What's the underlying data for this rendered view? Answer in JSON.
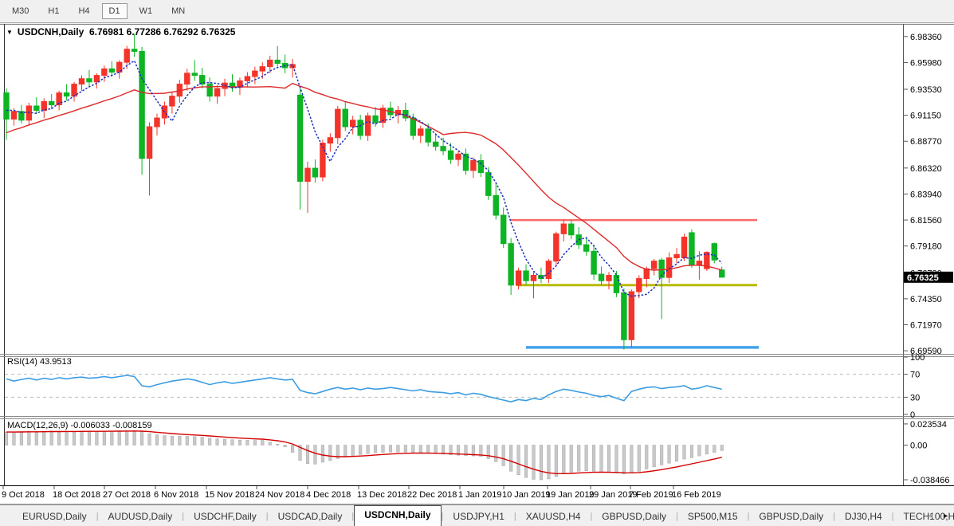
{
  "toolbar": {
    "timeframes": [
      "M30",
      "H1",
      "H4",
      "D1",
      "W1",
      "MN"
    ],
    "active_timeframe": "D1"
  },
  "chart": {
    "symbol": "USDCNH,Daily",
    "ohlc_text": "6.76981 6.77286 6.76292 6.76325",
    "open": "6.76981",
    "high": "6.77286",
    "low": "6.76292",
    "close": "6.76325",
    "current_price": "6.76325",
    "price_scale_labels": [
      "6.98360",
      "6.95980",
      "6.93530",
      "6.91150",
      "6.88770",
      "6.86320",
      "6.83940",
      "6.81560",
      "6.79180",
      "6.76730",
      "6.74350",
      "6.71970",
      "6.69590"
    ]
  },
  "rsi": {
    "label": "RSI(14) 43.9513",
    "scale_labels": [
      "100",
      "70",
      "30",
      "0"
    ],
    "dashed_levels": [
      70,
      30
    ]
  },
  "macd": {
    "label": "MACD(12,26,9) -0.006033 -0.008159",
    "scale_labels": [
      "0.023534",
      "0.00",
      "-0.038466"
    ]
  },
  "date_axis": [
    "9 Oct 2018",
    "18 Oct 2018",
    "27 Oct 2018",
    "6 Nov 2018",
    "15 Nov 2018",
    "24 Nov 2018",
    "4 Dec 2018",
    "13 Dec 2018",
    "22 Dec 2018",
    "1 Jan 2019",
    "10 Jan 2019",
    "19 Jan 2019",
    "29 Jan 2019",
    "7 Feb 2019",
    "16 Feb 2019"
  ],
  "tabs": {
    "items": [
      "EURUSD,Daily",
      "AUDUSD,Daily",
      "USDCHF,Daily",
      "USDCAD,Daily",
      "USDCNH,Daily",
      "USDJPY,H1",
      "XAUUSD,H4",
      "GBPUSD,Daily",
      "SP500,M15",
      "GBPUSD,Daily",
      "DJ30,H4",
      "TECH100,H1"
    ],
    "active_index": 4,
    "scroll_left": "◄",
    "scroll_right": "►"
  },
  "colors": {
    "bull_red": "#f4342a",
    "bear_green": "#0db424",
    "ma_fast_blue": "#1c2fbd",
    "ma_slow_red": "#dd2a2a",
    "level_red": "#fa6a6a",
    "level_olive": "#b7ba00",
    "level_blue": "#42a2ea",
    "rsi_blue": "#3d9de2",
    "macd_bar": "#c9c9c9",
    "macd_bar_edge": "#a6a6a6",
    "macd_signal": "#d40000",
    "price_tag_bg": "#000000",
    "price_tag_text": "#ffffff"
  },
  "chart_data": {
    "type": "candlestick",
    "title": "USDCNH,Daily",
    "levels": {
      "resistance_red": 6.8156,
      "support_olive": 6.756,
      "support_blue": 6.699
    },
    "price_axis_range": [
      6.6923,
      6.9944
    ],
    "rsi_axis_range": [
      0,
      100
    ],
    "macd_axis_range": [
      -0.0429,
      0.0279
    ],
    "ma_seed_closes": [
      6.858,
      6.862,
      6.866,
      6.87,
      6.874,
      6.878,
      6.882,
      6.886,
      6.89,
      6.894,
      6.897,
      6.9,
      6.903,
      6.906,
      6.909,
      6.912,
      6.915,
      6.917,
      6.919,
      6.921
    ],
    "candles_ohlc": [
      [
        6.932,
        6.936,
        6.889,
        6.908
      ],
      [
        6.908,
        6.918,
        6.902,
        6.915
      ],
      [
        6.915,
        6.921,
        6.904,
        6.907
      ],
      [
        6.907,
        6.923,
        6.902,
        6.92
      ],
      [
        6.92,
        6.928,
        6.913,
        6.916
      ],
      [
        6.916,
        6.927,
        6.909,
        6.924
      ],
      [
        6.924,
        6.931,
        6.917,
        6.921
      ],
      [
        6.921,
        6.934,
        6.916,
        6.932
      ],
      [
        6.932,
        6.94,
        6.925,
        6.929
      ],
      [
        6.929,
        6.942,
        6.924,
        6.94
      ],
      [
        6.94,
        6.948,
        6.934,
        6.945
      ],
      [
        6.945,
        6.953,
        6.938,
        6.942
      ],
      [
        6.942,
        6.95,
        6.936,
        6.948
      ],
      [
        6.948,
        6.957,
        6.942,
        6.954
      ],
      [
        6.954,
        6.961,
        6.947,
        6.951
      ],
      [
        6.951,
        6.962,
        6.945,
        6.96
      ],
      [
        6.96,
        6.975,
        6.954,
        6.972
      ],
      [
        6.972,
        6.986,
        6.965,
        6.97
      ],
      [
        6.97,
        6.974,
        6.857,
        6.872
      ],
      [
        6.872,
        6.905,
        6.838,
        6.901
      ],
      [
        6.901,
        6.913,
        6.893,
        6.909
      ],
      [
        6.909,
        6.924,
        6.903,
        6.92
      ],
      [
        6.92,
        6.933,
        6.913,
        6.929
      ],
      [
        6.929,
        6.944,
        6.923,
        6.94
      ],
      [
        6.94,
        6.954,
        6.934,
        6.95
      ],
      [
        6.95,
        6.962,
        6.943,
        6.948
      ],
      [
        6.948,
        6.955,
        6.936,
        6.94
      ],
      [
        6.94,
        6.946,
        6.924,
        6.929
      ],
      [
        6.929,
        6.939,
        6.922,
        6.936
      ],
      [
        6.936,
        6.945,
        6.929,
        6.941
      ],
      [
        6.941,
        6.949,
        6.933,
        6.937
      ],
      [
        6.937,
        6.946,
        6.93,
        6.943
      ],
      [
        6.943,
        6.951,
        6.937,
        6.947
      ],
      [
        6.947,
        6.956,
        6.94,
        6.952
      ],
      [
        6.952,
        6.96,
        6.945,
        6.956
      ],
      [
        6.956,
        6.966,
        6.95,
        6.962
      ],
      [
        6.962,
        6.975,
        6.956,
        6.959
      ],
      [
        6.959,
        6.967,
        6.95,
        6.955
      ],
      [
        6.955,
        6.963,
        6.946,
        6.958
      ],
      [
        6.93,
        6.936,
        6.825,
        6.851
      ],
      [
        6.851,
        6.869,
        6.822,
        6.863
      ],
      [
        6.863,
        6.871,
        6.85,
        6.855
      ],
      [
        6.855,
        6.889,
        6.851,
        6.886
      ],
      [
        6.886,
        6.895,
        6.878,
        6.891
      ],
      [
        6.891,
        6.92,
        6.885,
        6.917
      ],
      [
        6.917,
        6.924,
        6.897,
        6.901
      ],
      [
        6.901,
        6.911,
        6.894,
        6.907
      ],
      [
        6.907,
        6.912,
        6.889,
        6.893
      ],
      [
        6.893,
        6.914,
        6.888,
        6.911
      ],
      [
        6.911,
        6.919,
        6.901,
        6.905
      ],
      [
        6.905,
        6.921,
        6.9,
        6.918
      ],
      [
        6.918,
        6.924,
        6.909,
        6.912
      ],
      [
        6.912,
        6.92,
        6.904,
        6.916
      ],
      [
        6.916,
        6.923,
        6.906,
        6.909
      ],
      [
        6.909,
        6.913,
        6.889,
        6.893
      ],
      [
        6.893,
        6.902,
        6.886,
        6.899
      ],
      [
        6.899,
        6.904,
        6.883,
        6.887
      ],
      [
        6.887,
        6.895,
        6.879,
        6.883
      ],
      [
        6.883,
        6.891,
        6.875,
        6.879
      ],
      [
        6.879,
        6.886,
        6.867,
        6.871
      ],
      [
        6.871,
        6.879,
        6.865,
        6.876
      ],
      [
        6.876,
        6.881,
        6.857,
        6.861
      ],
      [
        6.861,
        6.873,
        6.854,
        6.87
      ],
      [
        6.87,
        6.876,
        6.855,
        6.859
      ],
      [
        6.859,
        6.864,
        6.834,
        6.838
      ],
      [
        6.838,
        6.849,
        6.816,
        6.82
      ],
      [
        6.82,
        6.827,
        6.79,
        6.794
      ],
      [
        6.794,
        6.799,
        6.747,
        6.756
      ],
      [
        6.756,
        6.772,
        6.752,
        6.769
      ],
      [
        6.769,
        6.775,
        6.756,
        6.76
      ],
      [
        6.76,
        6.768,
        6.744,
        6.765
      ],
      [
        6.765,
        6.772,
        6.758,
        6.762
      ],
      [
        6.762,
        6.78,
        6.758,
        6.778
      ],
      [
        6.778,
        6.805,
        6.774,
        6.803
      ],
      [
        6.803,
        6.816,
        6.796,
        6.812
      ],
      [
        6.812,
        6.8155,
        6.798,
        6.802
      ],
      [
        6.802,
        6.809,
        6.789,
        6.793
      ],
      [
        6.793,
        6.8,
        6.783,
        6.787
      ],
      [
        6.787,
        6.793,
        6.761,
        6.766
      ],
      [
        6.766,
        6.773,
        6.756,
        6.76
      ],
      [
        6.76,
        6.768,
        6.752,
        6.765
      ],
      [
        6.765,
        6.769,
        6.745,
        6.749
      ],
      [
        6.749,
        6.753,
        6.697,
        6.706
      ],
      [
        6.706,
        6.752,
        6.699,
        6.75
      ],
      [
        6.75,
        6.765,
        6.744,
        6.762
      ],
      [
        6.762,
        6.773,
        6.754,
        6.771
      ],
      [
        6.771,
        6.78,
        6.765,
        6.778
      ],
      [
        6.779,
        6.781,
        6.725,
        6.763
      ],
      [
        6.763,
        6.786,
        6.758,
        6.781
      ],
      [
        6.781,
        6.79,
        6.776,
        6.784
      ],
      [
        6.781,
        6.803,
        6.778,
        6.8
      ],
      [
        6.804,
        6.807,
        6.772,
        6.774
      ],
      [
        6.774,
        6.787,
        6.761,
        6.778
      ],
      [
        6.771,
        6.787,
        6.769,
        6.786
      ],
      [
        6.794,
        6.795,
        6.776,
        6.779
      ],
      [
        6.76981,
        6.77286,
        6.76292,
        6.76325
      ]
    ],
    "rsi_values": [
      62,
      58,
      61,
      63,
      60,
      63,
      61,
      64,
      62,
      64,
      65,
      63,
      64,
      66,
      64,
      66,
      68,
      66,
      50,
      48,
      52,
      55,
      58,
      60,
      62,
      60,
      56,
      52,
      55,
      57,
      54,
      56,
      58,
      60,
      62,
      64,
      62,
      60,
      61,
      42,
      38,
      36,
      40,
      44,
      47,
      44,
      46,
      43,
      46,
      44,
      45,
      47,
      45,
      43,
      41,
      43,
      40,
      39,
      38,
      36,
      38,
      34,
      37,
      35,
      31,
      28,
      25,
      22,
      26,
      24,
      28,
      26,
      34,
      40,
      44,
      42,
      39,
      37,
      33,
      31,
      33,
      28,
      24,
      40,
      44,
      47,
      48,
      45,
      47,
      48,
      50,
      44,
      46,
      50,
      47,
      43.9513
    ],
    "macd_values": [
      0.0145,
      0.0148,
      0.015,
      0.0152,
      0.015,
      0.0153,
      0.0155,
      0.0154,
      0.0152,
      0.0154,
      0.0156,
      0.0155,
      0.0153,
      0.0155,
      0.0157,
      0.0158,
      0.016,
      0.0162,
      0.0148,
      0.0128,
      0.0115,
      0.0105,
      0.01,
      0.0098,
      0.0098,
      0.0095,
      0.0088,
      0.0078,
      0.007,
      0.0066,
      0.006,
      0.0056,
      0.0054,
      0.0053,
      0.0054,
      0.003,
      0.001,
      -0.002,
      -0.008,
      -0.017,
      -0.0205,
      -0.021,
      -0.019,
      -0.017,
      -0.015,
      -0.013,
      -0.0115,
      -0.0105,
      -0.0095,
      -0.0085,
      -0.008,
      -0.0078,
      -0.0077,
      -0.0078,
      -0.0082,
      -0.0085,
      -0.009,
      -0.0095,
      -0.01,
      -0.0108,
      -0.0112,
      -0.0118,
      -0.012,
      -0.0125,
      -0.015,
      -0.0185,
      -0.023,
      -0.029,
      -0.033,
      -0.036,
      -0.038,
      -0.0385,
      -0.0375,
      -0.035,
      -0.032,
      -0.03,
      -0.029,
      -0.0285,
      -0.029,
      -0.03,
      -0.0305,
      -0.031,
      -0.032,
      -0.031,
      -0.029,
      -0.0265,
      -0.024,
      -0.022,
      -0.02,
      -0.018,
      -0.0155,
      -0.014,
      -0.012,
      -0.01,
      -0.008,
      -0.006033
    ]
  }
}
